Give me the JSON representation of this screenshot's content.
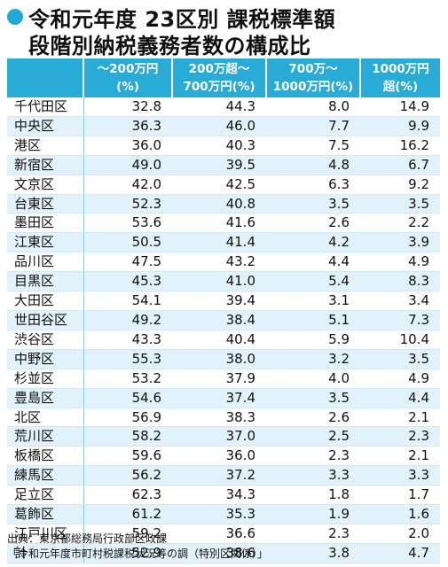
{
  "title": {
    "line1": "令和元年度 23区別 課税標準額",
    "line2": "段階別納税義務者数の構成比"
  },
  "columns": [
    {
      "line1": "",
      "line2": ""
    },
    {
      "line1": "～200万円",
      "line2": "(%)"
    },
    {
      "line1": "200万超～",
      "line2": "700万円(%)"
    },
    {
      "line1": "700万～",
      "line2": "1000万円(%)"
    },
    {
      "line1": "1000万円",
      "line2": "超(%)"
    }
  ],
  "rows": [
    [
      "千代田区",
      "32.8",
      "44.3",
      "8.0",
      "14.9"
    ],
    [
      "中央区",
      "36.3",
      "46.0",
      "7.7",
      "9.9"
    ],
    [
      "港区",
      "36.0",
      "40.3",
      "7.5",
      "16.2"
    ],
    [
      "新宿区",
      "49.0",
      "39.5",
      "4.8",
      "6.7"
    ],
    [
      "文京区",
      "42.0",
      "42.5",
      "6.3",
      "9.2"
    ],
    [
      "台東区",
      "52.3",
      "40.8",
      "3.5",
      "3.5"
    ],
    [
      "墨田区",
      "53.6",
      "41.6",
      "2.6",
      "2.2"
    ],
    [
      "江東区",
      "50.5",
      "41.4",
      "4.2",
      "3.9"
    ],
    [
      "品川区",
      "47.5",
      "43.2",
      "4.4",
      "4.9"
    ],
    [
      "目黒区",
      "45.3",
      "41.0",
      "5.4",
      "8.3"
    ],
    [
      "大田区",
      "54.1",
      "39.4",
      "3.1",
      "3.4"
    ],
    [
      "世田谷区",
      "49.2",
      "38.4",
      "5.1",
      "7.3"
    ],
    [
      "渋谷区",
      "43.3",
      "40.4",
      "5.9",
      "10.4"
    ],
    [
      "中野区",
      "55.3",
      "38.0",
      "3.2",
      "3.5"
    ],
    [
      "杉並区",
      "53.2",
      "37.9",
      "4.0",
      "4.9"
    ],
    [
      "豊島区",
      "54.6",
      "37.4",
      "3.5",
      "4.4"
    ],
    [
      "北区",
      "56.9",
      "38.3",
      "2.6",
      "2.1"
    ],
    [
      "荒川区",
      "58.2",
      "37.0",
      "2.5",
      "2.3"
    ],
    [
      "板橋区",
      "59.6",
      "36.0",
      "2.3",
      "2.1"
    ],
    [
      "練馬区",
      "56.2",
      "37.2",
      "3.3",
      "3.3"
    ],
    [
      "足立区",
      "62.3",
      "34.3",
      "1.8",
      "1.7"
    ],
    [
      "葛飾区",
      "61.2",
      "35.3",
      "1.9",
      "1.6"
    ],
    [
      "江戸川区",
      "59.2",
      "36.6",
      "2.3",
      "2.0"
    ],
    [
      "計",
      "52.9",
      "38.6",
      "3.8",
      "4.7"
    ]
  ],
  "source": {
    "line1": "出典：東京都総務局行政部区政課",
    "line2": "「令和元年度市町村税課税状況等の調（特別区関係）」"
  },
  "colors": {
    "accent": "#28abd5",
    "row_alt": "#e1f2fa",
    "bullet": "#21a9d6"
  }
}
